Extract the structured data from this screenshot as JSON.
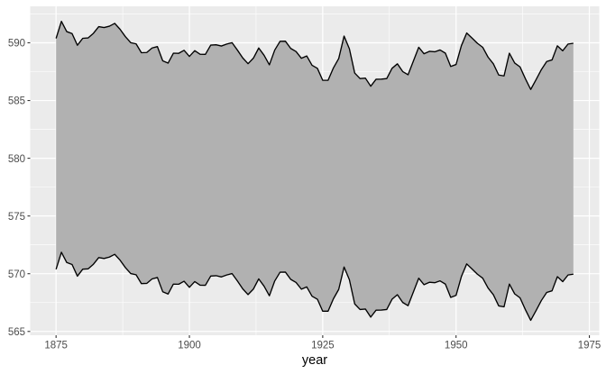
{
  "chart_data": {
    "type": "area",
    "title": "",
    "xlabel": "year",
    "ylabel": "",
    "legend_position": "none",
    "grid": "on",
    "x_ticks": [
      1875,
      1900,
      1925,
      1950,
      1975
    ],
    "y_ticks": [
      565,
      570,
      575,
      580,
      585,
      590
    ],
    "x_minor_ticks": [
      1887.5,
      1912.5,
      1937.5,
      1962.5
    ],
    "y_minor_ticks": [
      567.5,
      572.5,
      577.5,
      582.5,
      587.5,
      592.5
    ],
    "xlim": [
      1870.15,
      1976.85
    ],
    "ylim": [
      564.67,
      593.16
    ],
    "x_start": 1875,
    "x_end": 1972,
    "ribbon_half_width": 10,
    "series": [
      {
        "name": "upper boundary",
        "definition": "level + 10"
      },
      {
        "name": "lower boundary",
        "definition": "level - 10"
      }
    ],
    "level": [
      580.38,
      581.86,
      580.97,
      580.8,
      579.79,
      580.39,
      580.42,
      580.82,
      581.4,
      581.32,
      581.44,
      581.68,
      581.17,
      580.53,
      580.01,
      579.91,
      579.14,
      579.16,
      579.55,
      579.67,
      578.44,
      578.24,
      579.1,
      579.09,
      579.35,
      578.82,
      579.32,
      579.01,
      579.0,
      579.8,
      579.83,
      579.72,
      579.89,
      580.01,
      579.37,
      578.69,
      578.19,
      578.67,
      579.55,
      578.92,
      578.09,
      579.37,
      580.13,
      580.14,
      579.51,
      579.24,
      578.66,
      578.86,
      578.05,
      577.79,
      576.75,
      576.75,
      577.82,
      578.64,
      580.58,
      579.48,
      577.38,
      576.9,
      576.94,
      576.24,
      576.84,
      576.85,
      576.9,
      577.79,
      578.18,
      577.51,
      577.23,
      578.42,
      579.61,
      579.05,
      579.26,
      579.22,
      579.38,
      579.1,
      577.95,
      578.12,
      579.75,
      580.85,
      580.41,
      579.96,
      579.61,
      578.76,
      578.18,
      577.21,
      577.13,
      579.1,
      578.25,
      577.91,
      576.89,
      575.96,
      576.8,
      577.68,
      578.38,
      578.52,
      579.74,
      579.31,
      579.89,
      579.96
    ]
  },
  "style": {
    "figure_bg": "#FFFFFF",
    "panel_bg": "#EBEBEB",
    "grid_color": "#FFFFFF",
    "ribbon_fill": "#B1B1B1",
    "line_color": "#000000",
    "tick_mark_color": "#333333",
    "axis_text_color": "#4D4D4D",
    "axis_title_color": "#000000"
  }
}
